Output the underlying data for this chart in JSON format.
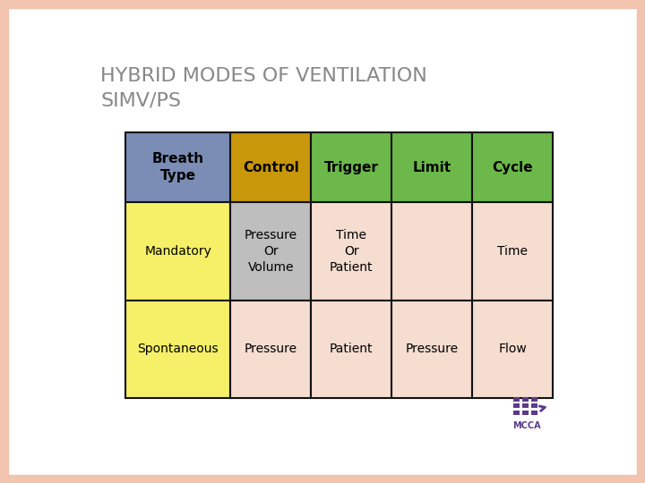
{
  "title_line1": "HYBRID MODES OF VENTILATION",
  "title_line2": "SIMV/PS",
  "title_fontsize": 16,
  "title_color": "#888888",
  "background_color": "#FFFFFF",
  "border_color": "#F2C4B0",
  "table": {
    "col_labels": [
      "Breath\nType",
      "Control",
      "Trigger",
      "Limit",
      "Cycle"
    ],
    "row_labels": [
      "Mandatory",
      "Spontaneous"
    ],
    "data": [
      [
        "Pressure\nOr\nVolume",
        "Time\nOr\nPatient",
        "",
        "Time"
      ],
      [
        "Pressure",
        "Patient",
        "Pressure",
        "Flow"
      ]
    ],
    "header_colors": [
      "#7B8DB5",
      "#C8970A",
      "#6CB84A",
      "#6CB84A",
      "#6CB84A"
    ],
    "row0_col0_color": "#F5F067",
    "row1_col0_color": "#F5F067",
    "row0_col1_color": "#BEBEBE",
    "row0_col2_color": "#F5DDD0",
    "row0_col3_color": "#F5DDD0",
    "row0_col4_color": "#F5DDD0",
    "row1_col1_color": "#F5DDD0",
    "row1_col2_color": "#F5DDD0",
    "row1_col3_color": "#F5DDD0",
    "row1_col4_color": "#F5DDD0",
    "header_text_color": "#000000",
    "cell_text_color": "#000000",
    "line_color": "#111111"
  },
  "logo_color": "#5B3A8A",
  "logo_text": "MCCA"
}
